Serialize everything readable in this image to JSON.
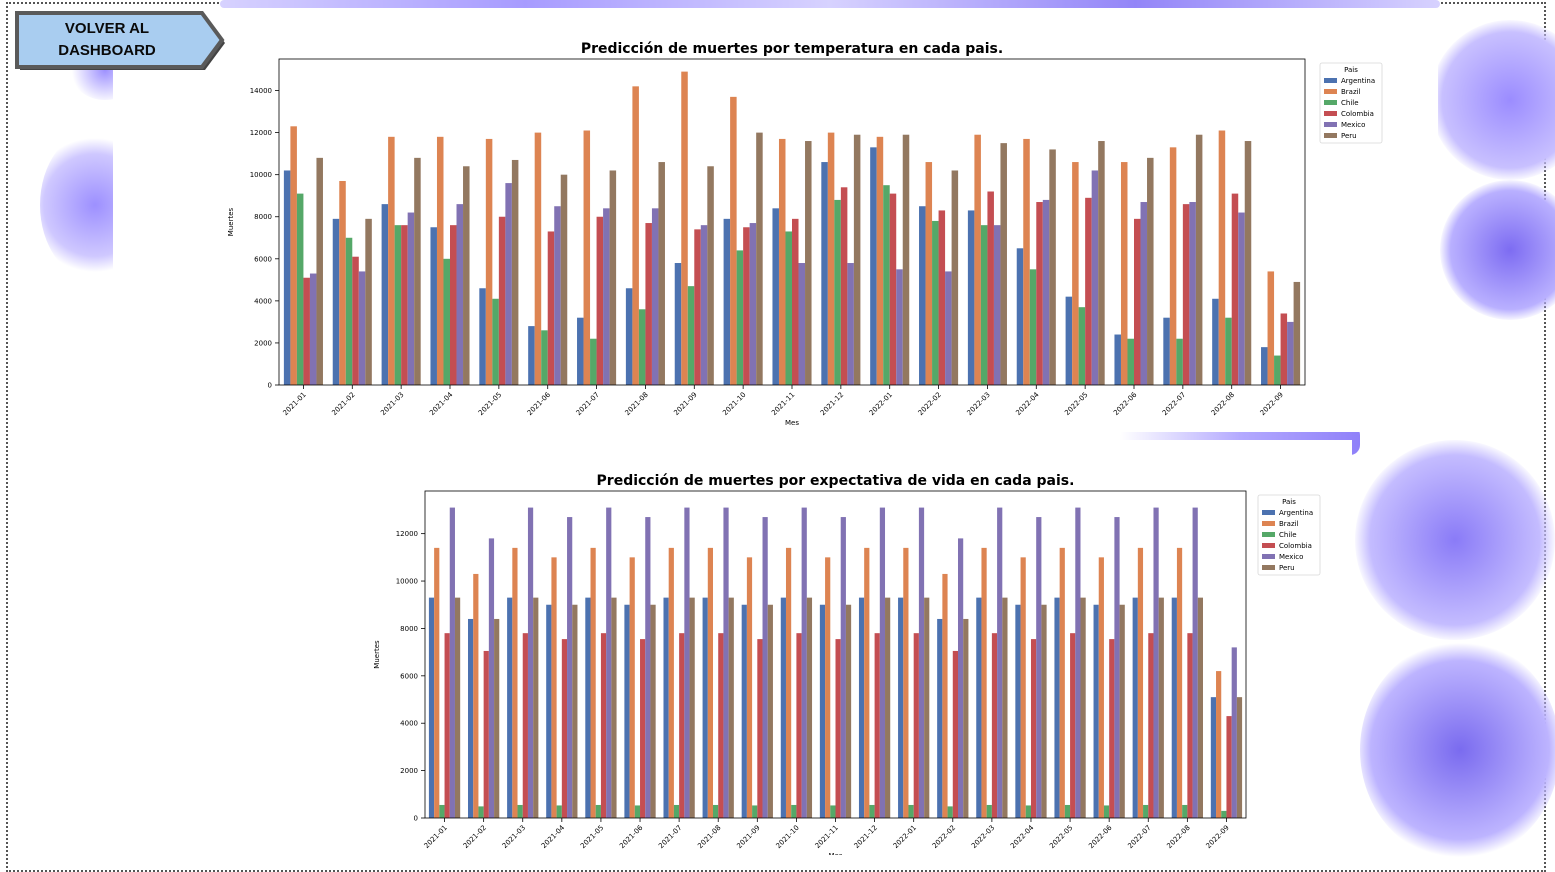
{
  "button": {
    "line1": "VOLVER AL",
    "line2": "DASHBOARD"
  },
  "colors": {
    "Argentina": "#4c72b0",
    "Brazil": "#dd8452",
    "Chile": "#55a868",
    "Colombia": "#c44e52",
    "Mexico": "#8172b3",
    "Peru": "#937860",
    "virus": "#8b7cf6"
  },
  "chart_data": [
    {
      "type": "bar",
      "title": "Predicción de muertes por temperatura en cada pais.",
      "xlabel": "Mes",
      "ylabel": "Muertes",
      "ylim": [
        0,
        15500
      ],
      "yticks": [
        0,
        2000,
        4000,
        6000,
        8000,
        10000,
        12000,
        14000
      ],
      "legend_title": "Pais",
      "legend_position": "right",
      "categories": [
        "2021-01",
        "2021-02",
        "2021-03",
        "2021-04",
        "2021-05",
        "2021-06",
        "2021-07",
        "2021-08",
        "2021-09",
        "2021-10",
        "2021-11",
        "2021-12",
        "2022-01",
        "2022-02",
        "2022-03",
        "2022-04",
        "2022-05",
        "2022-06",
        "2022-07",
        "2022-08",
        "2022-09"
      ],
      "series": [
        {
          "name": "Argentina",
          "values": [
            10200,
            7900,
            8600,
            7500,
            4600,
            2800,
            3200,
            4600,
            5800,
            7900,
            8400,
            10600,
            11300,
            8500,
            8300,
            6500,
            4200,
            2400,
            3200,
            4100,
            1800
          ]
        },
        {
          "name": "Brazil",
          "values": [
            12300,
            9700,
            11800,
            11800,
            11700,
            12000,
            12100,
            14200,
            14900,
            13700,
            11700,
            12000,
            11800,
            10600,
            11900,
            11700,
            10600,
            10600,
            11300,
            12100,
            5400
          ]
        },
        {
          "name": "Chile",
          "values": [
            9100,
            7000,
            7600,
            6000,
            4100,
            2600,
            2200,
            3600,
            4700,
            6400,
            7300,
            8800,
            9500,
            7800,
            7600,
            5500,
            3700,
            2200,
            2200,
            3200,
            1400
          ]
        },
        {
          "name": "Colombia",
          "values": [
            5100,
            6100,
            7600,
            7600,
            8000,
            7300,
            8000,
            7700,
            7400,
            7500,
            7900,
            9400,
            9100,
            8300,
            9200,
            8700,
            8900,
            7900,
            8600,
            9100,
            3400
          ]
        },
        {
          "name": "Mexico",
          "values": [
            5300,
            5400,
            8200,
            8600,
            9600,
            8500,
            8400,
            8400,
            7600,
            7700,
            5800,
            5800,
            5500,
            5400,
            7600,
            8800,
            10200,
            8700,
            8700,
            8200,
            3000
          ]
        },
        {
          "name": "Peru",
          "values": [
            10800,
            7900,
            10800,
            10400,
            10700,
            10000,
            10200,
            10600,
            10400,
            12000,
            11600,
            11900,
            11900,
            10200,
            11500,
            11200,
            11600,
            10800,
            11900,
            11600,
            4900
          ]
        }
      ]
    },
    {
      "type": "bar",
      "title": "Predicción de muertes por expectativa de vida en cada pais.",
      "xlabel": "Mes",
      "ylabel": "Muertes",
      "ylim": [
        0,
        13800
      ],
      "yticks": [
        0,
        2000,
        4000,
        6000,
        8000,
        10000,
        12000
      ],
      "legend_title": "Pais",
      "legend_position": "right",
      "categories": [
        "2021-01",
        "2021-02",
        "2021-03",
        "2021-04",
        "2021-05",
        "2021-06",
        "2021-07",
        "2021-08",
        "2021-09",
        "2021-10",
        "2021-11",
        "2021-12",
        "2022-01",
        "2022-02",
        "2022-03",
        "2022-04",
        "2022-05",
        "2022-06",
        "2022-07",
        "2022-08",
        "2022-09"
      ],
      "series": [
        {
          "name": "Argentina",
          "values": [
            9300,
            8400,
            9300,
            9000,
            9300,
            9000,
            9300,
            9300,
            9000,
            9300,
            9000,
            9300,
            9300,
            8400,
            9300,
            9000,
            9300,
            9000,
            9300,
            9300,
            5100
          ]
        },
        {
          "name": "Brazil",
          "values": [
            11400,
            10300,
            11400,
            11000,
            11400,
            11000,
            11400,
            11400,
            11000,
            11400,
            11000,
            11400,
            11400,
            10300,
            11400,
            11000,
            11400,
            11000,
            11400,
            11400,
            6200
          ]
        },
        {
          "name": "Chile",
          "values": [
            550,
            490,
            550,
            530,
            550,
            530,
            550,
            550,
            530,
            550,
            530,
            550,
            550,
            490,
            550,
            530,
            550,
            530,
            550,
            550,
            300
          ]
        },
        {
          "name": "Colombia",
          "values": [
            7800,
            7050,
            7800,
            7550,
            7800,
            7550,
            7800,
            7800,
            7550,
            7800,
            7550,
            7800,
            7800,
            7050,
            7800,
            7550,
            7800,
            7550,
            7800,
            7800,
            4300
          ]
        },
        {
          "name": "Mexico",
          "values": [
            13100,
            11800,
            13100,
            12700,
            13100,
            12700,
            13100,
            13100,
            12700,
            13100,
            12700,
            13100,
            13100,
            11800,
            13100,
            12700,
            13100,
            12700,
            13100,
            13100,
            7200
          ]
        },
        {
          "name": "Peru",
          "values": [
            9300,
            8400,
            9300,
            9000,
            9300,
            9000,
            9300,
            9300,
            9000,
            9300,
            9000,
            9300,
            9300,
            8400,
            9300,
            9000,
            9300,
            9000,
            9300,
            9300,
            5100
          ]
        }
      ]
    }
  ]
}
